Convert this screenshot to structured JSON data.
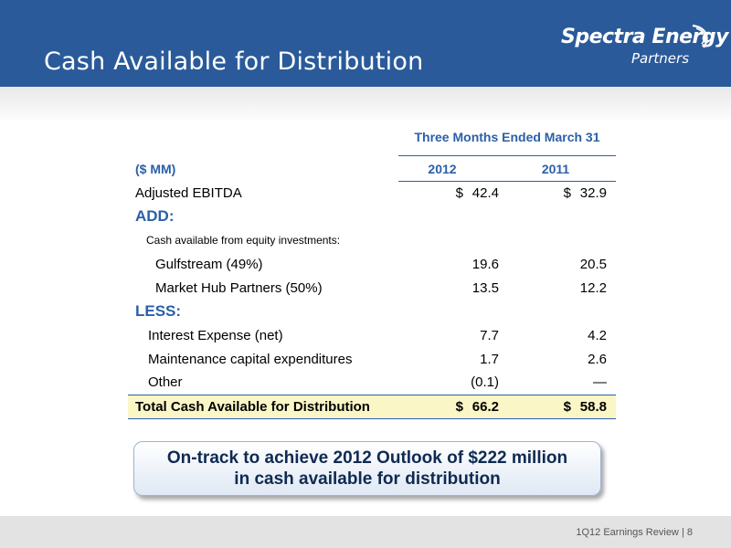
{
  "header": {
    "title": "Cash Available for Distribution",
    "logo_main": "Spectra Energy",
    "logo_sub": "Partners",
    "bg_color": "#2a5a99"
  },
  "table": {
    "period_header": "Three Months Ended March 31",
    "unit_label": "($ MM)",
    "col_2012": "2012",
    "col_2011": "2011",
    "rows": {
      "adjusted_ebitda": {
        "label": "Adjusted EBITDA",
        "v2012": "42.4",
        "v2011": "32.9",
        "currency": "$"
      },
      "add_label": "ADD:",
      "equity_subhead": "Cash available from equity investments:",
      "gulfstream": {
        "label": "Gulfstream (49%)",
        "v2012": "19.6",
        "v2011": "20.5"
      },
      "market_hub": {
        "label": "Market Hub Partners (50%)",
        "v2012": "13.5",
        "v2011": "12.2"
      },
      "less_label": "LESS:",
      "interest": {
        "label": "Interest Expense (net)",
        "v2012": "7.7",
        "v2011": "4.2"
      },
      "maintenance": {
        "label": "Maintenance capital expenditures",
        "v2012": "1.7",
        "v2011": "2.6"
      },
      "other": {
        "label": "Other",
        "v2012": "(0.1)",
        "v2011": "—"
      },
      "total": {
        "label": "Total Cash Available for Distribution",
        "v2012": "66.2",
        "v2011": "58.8",
        "currency": "$"
      }
    },
    "accent_color": "#2a5fa8",
    "total_bg_color": "#fbf6c6"
  },
  "callout": {
    "line1": "On-track to achieve 2012 Outlook of $222 million",
    "line2": "in cash available for distribution"
  },
  "footer": {
    "text": "1Q12 Earnings Review",
    "page": "8"
  }
}
